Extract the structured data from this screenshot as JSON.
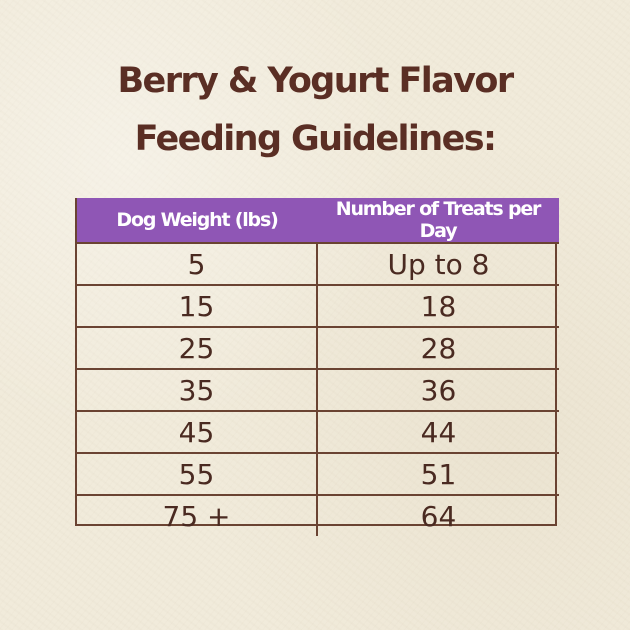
{
  "page": {
    "title_line1": "Berry & Yogurt Flavor",
    "title_line2": "Feeding Guidelines:"
  },
  "table": {
    "headers": [
      "Dog Weight (lbs)",
      "Number of Treats per Day"
    ],
    "rows": [
      [
        "5",
        "Up to 8"
      ],
      [
        "15",
        "18"
      ],
      [
        "25",
        "28"
      ],
      [
        "35",
        "36"
      ],
      [
        "45",
        "44"
      ],
      [
        "55",
        "51"
      ],
      [
        "75 +",
        "64"
      ]
    ]
  },
  "colors": {
    "background": "#f1ebdb",
    "title": "#5a2e24",
    "header_bg": "#8f56b5",
    "header_text": "#ffffff",
    "border": "#6a4332",
    "cell_text": "#4a2a21"
  }
}
